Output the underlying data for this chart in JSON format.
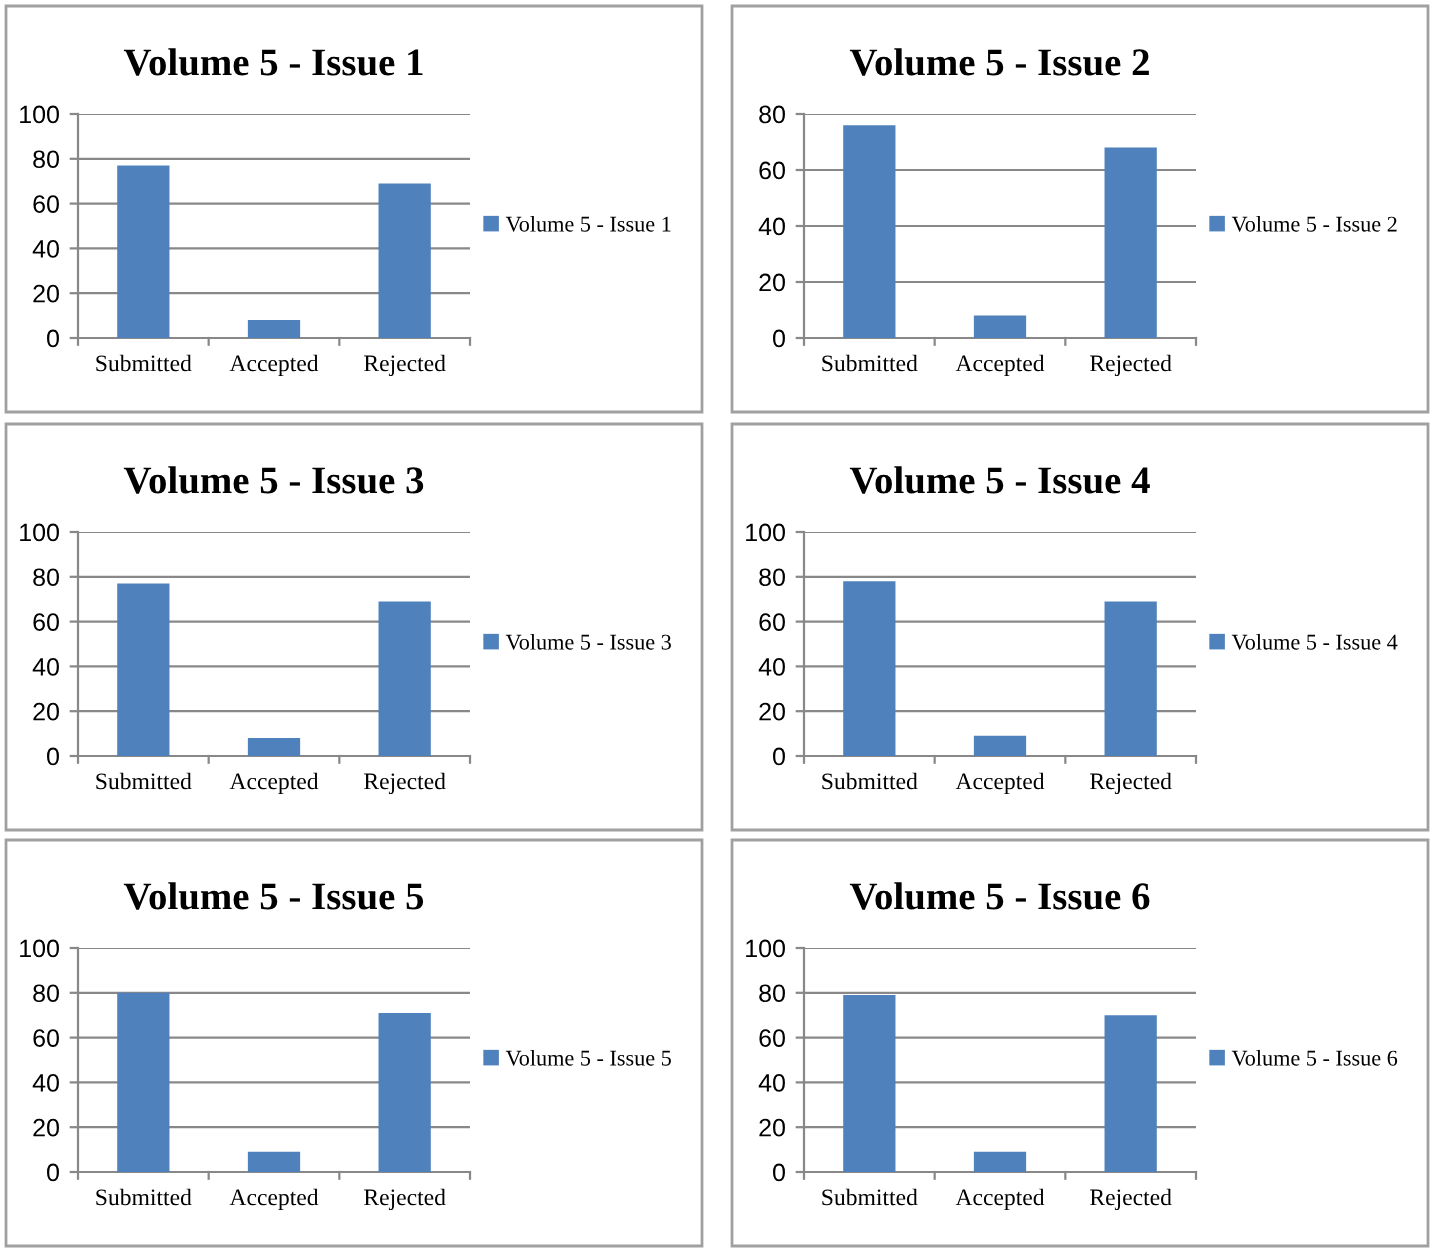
{
  "chart_data": [
    {
      "type": "bar",
      "title": "Volume 5 - Issue 1",
      "categories": [
        "Submitted",
        "Accepted",
        "Rejected"
      ],
      "series": [
        {
          "name": "Volume 5 - Issue 1",
          "color": "#4f81bd",
          "values": [
            77,
            8,
            69
          ]
        }
      ],
      "ylim": [
        0,
        100
      ],
      "yticks": [
        0,
        20,
        40,
        60,
        80,
        100
      ],
      "grid": "y",
      "legend": "right"
    },
    {
      "type": "bar",
      "title": "Volume 5 - Issue 2",
      "categories": [
        "Submitted",
        "Accepted",
        "Rejected"
      ],
      "series": [
        {
          "name": "Volume 5 - Issue 2",
          "color": "#4f81bd",
          "values": [
            76,
            8,
            68
          ]
        }
      ],
      "ylim": [
        0,
        80
      ],
      "yticks": [
        0,
        20,
        40,
        60,
        80
      ],
      "grid": "y",
      "legend": "right"
    },
    {
      "type": "bar",
      "title": "Volume 5 - Issue 3",
      "categories": [
        "Submitted",
        "Accepted",
        "Rejected"
      ],
      "series": [
        {
          "name": "Volume 5 - Issue 3",
          "color": "#4f81bd",
          "values": [
            77,
            8,
            69
          ]
        }
      ],
      "ylim": [
        0,
        100
      ],
      "yticks": [
        0,
        20,
        40,
        60,
        80,
        100
      ],
      "grid": "y",
      "legend": "right"
    },
    {
      "type": "bar",
      "title": "Volume 5 - Issue 4",
      "categories": [
        "Submitted",
        "Accepted",
        "Rejected"
      ],
      "series": [
        {
          "name": "Volume 5 - Issue 4",
          "color": "#4f81bd",
          "values": [
            78,
            9,
            69
          ]
        }
      ],
      "ylim": [
        0,
        100
      ],
      "yticks": [
        0,
        20,
        40,
        60,
        80,
        100
      ],
      "grid": "y",
      "legend": "right"
    },
    {
      "type": "bar",
      "title": "Volume 5 - Issue 5",
      "categories": [
        "Submitted",
        "Accepted",
        "Rejected"
      ],
      "series": [
        {
          "name": "Volume 5 - Issue 5",
          "color": "#4f81bd",
          "values": [
            80,
            9,
            71
          ]
        }
      ],
      "ylim": [
        0,
        100
      ],
      "yticks": [
        0,
        20,
        40,
        60,
        80,
        100
      ],
      "grid": "y",
      "legend": "right"
    },
    {
      "type": "bar",
      "title": "Volume 5 - Issue 6",
      "categories": [
        "Submitted",
        "Accepted",
        "Rejected"
      ],
      "series": [
        {
          "name": "Volume 5 - Issue 6",
          "color": "#4f81bd",
          "values": [
            79,
            9,
            70
          ]
        }
      ],
      "ylim": [
        0,
        100
      ],
      "yticks": [
        0,
        20,
        40,
        60,
        80,
        100
      ],
      "grid": "y",
      "legend": "right"
    }
  ]
}
